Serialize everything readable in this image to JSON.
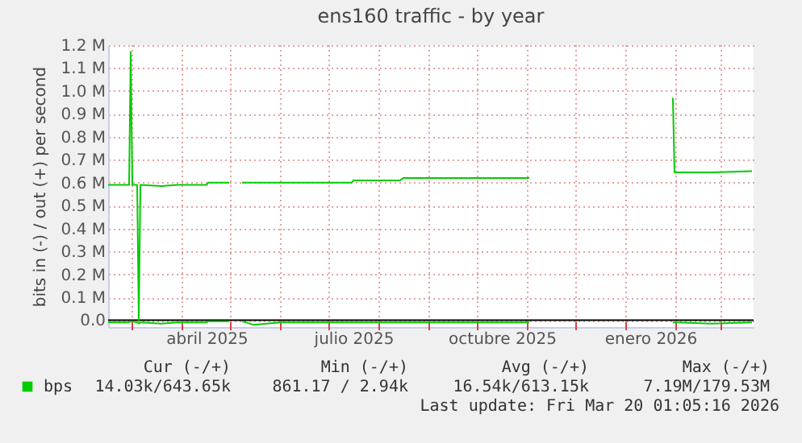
{
  "chart_data": {
    "type": "line",
    "title": "ens160 traffic - by year",
    "ylabel": "bits in (-) / out (+) per second",
    "x": [
      "2025-02-14",
      "2025-02-27",
      "2025-02-28",
      "2025-03-01",
      "2025-03-04",
      "2025-03-05",
      "2025-03-06",
      "2025-03-19",
      "2025-03-29",
      "2025-04-16",
      "2025-04-17",
      "2025-04-30",
      "2025-05-04",
      "2025-05-08",
      "2025-05-15",
      "2025-06-01",
      "2025-07-15",
      "2025-07-16",
      "2025-08-14",
      "2025-08-16",
      "2025-09-15",
      "2025-11-02",
      "2025-12-14",
      "2026-01-30",
      "2026-01-31",
      "2026-02-23",
      "2026-03-20"
    ],
    "series": [
      {
        "name": "bps",
        "color": "#00cc00",
        "values": [
          0.59,
          0.59,
          1.17,
          0.59,
          0.59,
          0.0,
          0.59,
          0.585,
          0.59,
          0.59,
          0.6,
          0.6,
          null,
          0.6,
          0.6,
          0.6,
          0.6,
          0.61,
          0.61,
          0.62,
          0.62,
          0.62,
          null,
          0.97,
          0.645,
          0.645,
          0.65
        ]
      },
      {
        "color": "#00cc00",
        "values": [
          -0.01,
          -0.01,
          -0.005,
          -0.005,
          -0.01,
          -0.015,
          -0.01,
          -0.015,
          -0.01,
          -0.01,
          -0.005,
          -0.005,
          null,
          -0.005,
          -0.02,
          -0.01,
          -0.01,
          -0.01,
          -0.01,
          -0.01,
          -0.01,
          -0.01,
          null,
          -0.01,
          -0.01,
          -0.015,
          -0.01
        ]
      }
    ],
    "xlim": [
      "2025-02-14",
      "2026-03-21"
    ],
    "xticks": [
      {
        "value": "2025-03-01",
        "label": null
      },
      {
        "value": "2025-04-01",
        "label": null
      },
      {
        "value": "2025-04-16",
        "label": "abril 2025"
      },
      {
        "value": "2025-05-01",
        "label": null
      },
      {
        "value": "2025-06-01",
        "label": null
      },
      {
        "value": "2025-07-01",
        "label": null
      },
      {
        "value": "2025-07-16",
        "label": "julio 2025"
      },
      {
        "value": "2025-08-01",
        "label": null
      },
      {
        "value": "2025-09-01",
        "label": null
      },
      {
        "value": "2025-10-01",
        "label": null
      },
      {
        "value": "2025-10-16",
        "label": "octubre 2025"
      },
      {
        "value": "2025-11-01",
        "label": null
      },
      {
        "value": "2025-12-01",
        "label": null
      },
      {
        "value": "2026-01-01",
        "label": null
      },
      {
        "value": "2026-01-16",
        "label": "enero 2026"
      },
      {
        "value": "2026-02-01",
        "label": null
      },
      {
        "value": "2026-03-01",
        "label": null
      }
    ],
    "ylim": [
      -0.03,
      1.2
    ],
    "yticks": [
      {
        "value": 0,
        "label": "0.0"
      },
      {
        "value": 0.1,
        "label": "0.1 M"
      },
      {
        "value": 0.2,
        "label": "0.2 M"
      },
      {
        "value": 0.3,
        "label": "0.3 M"
      },
      {
        "value": 0.4,
        "label": "0.4 M"
      },
      {
        "value": 0.5,
        "label": "0.5 M"
      },
      {
        "value": 0.6,
        "label": "0.6 M"
      },
      {
        "value": 0.7,
        "label": "0.7 M"
      },
      {
        "value": 0.8,
        "label": "0.8 M"
      },
      {
        "value": 0.9,
        "label": "0.9 M"
      },
      {
        "value": 1.0,
        "label": "1.0 M"
      },
      {
        "value": 1.1,
        "label": "1.1 M"
      },
      {
        "value": 1.2,
        "label": "1.2 M"
      }
    ],
    "ref_lines": [
      {
        "axis": "y",
        "value": 0,
        "color": "#000000"
      }
    ],
    "grid": true,
    "legend": "bottom left",
    "annotations": [
      "Cur (-/+)",
      "Min (-/+)",
      "Avg (-/+)",
      "Max (-/+)",
      "14.03k/643.65k",
      "861.17 /   2.94k",
      "16.54k/613.15k",
      "7.19M/179.53M",
      "Last update: Fri Mar 20 01:05:16 2026"
    ]
  }
}
